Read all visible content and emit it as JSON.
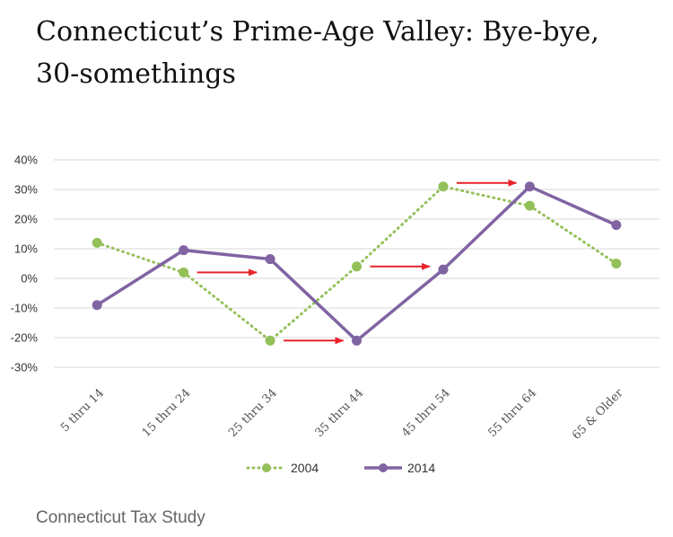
{
  "page": {
    "title": "Connecticut’s Prime-Age Valley: Bye-bye, 30-somethings",
    "source": "Connecticut Tax Study"
  },
  "chart_data": {
    "type": "line",
    "categories": [
      "5 thru 14",
      "15 thru 24",
      "25 thru 34",
      "35 thru 44",
      "45 thru 54",
      "55 thru 64",
      "65 & Older"
    ],
    "y_tick_labels": [
      "40%",
      "30%",
      "20%",
      "10%",
      "0%",
      "-10%",
      "-20%",
      "-30%"
    ],
    "ylim": [
      -30,
      40
    ],
    "grid": true,
    "legend_position": "bottom",
    "series": [
      {
        "name": "2004",
        "values": [
          12,
          2,
          -21,
          4,
          31,
          24.5,
          5
        ],
        "color": "#94c05a",
        "style": "dotted"
      },
      {
        "name": "2014",
        "values": [
          -9,
          9.5,
          6.5,
          -21,
          3,
          31,
          18
        ],
        "color": "#8064a2",
        "style": "solid"
      }
    ],
    "annotations": {
      "type": "arrows",
      "color": "#e8232a",
      "description_pairs": [
        [
          1,
          2
        ],
        [
          2,
          3
        ],
        [
          3,
          4
        ],
        [
          4,
          5
        ]
      ]
    }
  }
}
